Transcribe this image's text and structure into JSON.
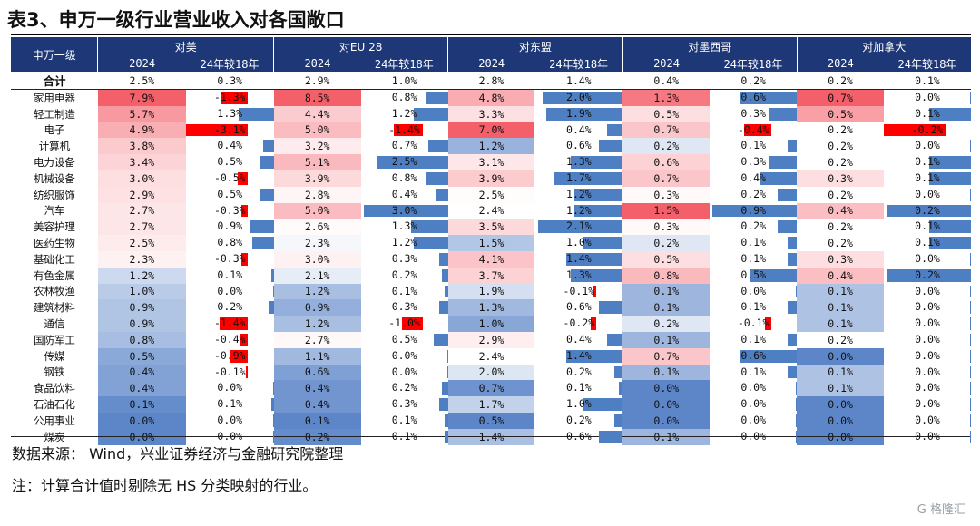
{
  "title": "表3、申万一级行业营业收入对各国敞口",
  "header": {
    "industry_label": "申万一级",
    "groups": [
      "对美",
      "对EU 28",
      "对东盟",
      "对墨西哥",
      "对加拿大"
    ],
    "sub_year": "2024",
    "sub_compare": "24年较18年"
  },
  "total": {
    "name": "合计",
    "values": [
      [
        "2.5%",
        "0.3%"
      ],
      [
        "2.9%",
        "1.0%"
      ],
      [
        "2.8%",
        "1.4%"
      ],
      [
        "0.4%",
        "0.2%"
      ],
      [
        "0.2%",
        "0.1%"
      ]
    ]
  },
  "rows": [
    {
      "name": "家用电器",
      "v": [
        [
          "7.9%",
          "-1.3%"
        ],
        [
          "8.5%",
          "0.8%"
        ],
        [
          "4.8%",
          "2.0%"
        ],
        [
          "1.3%",
          "0.6%"
        ],
        [
          "0.7%",
          "0.0%"
        ]
      ]
    },
    {
      "name": "轻工制造",
      "v": [
        [
          "5.7%",
          "1.3%"
        ],
        [
          "4.4%",
          "1.2%"
        ],
        [
          "3.3%",
          "1.9%"
        ],
        [
          "0.5%",
          "0.3%"
        ],
        [
          "0.5%",
          "0.1%"
        ]
      ]
    },
    {
      "name": "电子",
      "v": [
        [
          "4.9%",
          "-3.1%"
        ],
        [
          "5.0%",
          "-1.4%"
        ],
        [
          "7.0%",
          "0.4%"
        ],
        [
          "0.7%",
          "-0.4%"
        ],
        [
          "0.2%",
          "-0.2%"
        ]
      ]
    },
    {
      "name": "计算机",
      "v": [
        [
          "3.8%",
          "0.4%"
        ],
        [
          "3.2%",
          "0.7%"
        ],
        [
          "1.2%",
          "0.6%"
        ],
        [
          "0.2%",
          "0.1%"
        ],
        [
          "0.2%",
          "0.0%"
        ]
      ]
    },
    {
      "name": "电力设备",
      "v": [
        [
          "3.4%",
          "0.5%"
        ],
        [
          "5.1%",
          "2.5%"
        ],
        [
          "3.1%",
          "1.3%"
        ],
        [
          "0.6%",
          "0.3%"
        ],
        [
          "0.2%",
          "0.1%"
        ]
      ]
    },
    {
      "name": "机械设备",
      "v": [
        [
          "3.0%",
          "-0.5%"
        ],
        [
          "3.9%",
          "0.8%"
        ],
        [
          "3.9%",
          "1.7%"
        ],
        [
          "0.7%",
          "0.4%"
        ],
        [
          "0.3%",
          "0.1%"
        ]
      ]
    },
    {
      "name": "纺织服饰",
      "v": [
        [
          "2.9%",
          "0.5%"
        ],
        [
          "2.8%",
          "0.4%"
        ],
        [
          "2.5%",
          "1.2%"
        ],
        [
          "0.3%",
          "0.2%"
        ],
        [
          "0.2%",
          "0.0%"
        ]
      ]
    },
    {
      "name": "汽车",
      "v": [
        [
          "2.7%",
          "-0.3%"
        ],
        [
          "5.0%",
          "3.0%"
        ],
        [
          "2.4%",
          "1.2%"
        ],
        [
          "1.5%",
          "0.9%"
        ],
        [
          "0.4%",
          "0.2%"
        ]
      ]
    },
    {
      "name": "美容护理",
      "v": [
        [
          "2.7%",
          "0.9%"
        ],
        [
          "2.6%",
          "1.3%"
        ],
        [
          "3.5%",
          "2.1%"
        ],
        [
          "0.3%",
          "0.2%"
        ],
        [
          "0.2%",
          "0.1%"
        ]
      ]
    },
    {
      "name": "医药生物",
      "v": [
        [
          "2.5%",
          "0.8%"
        ],
        [
          "2.3%",
          "1.2%"
        ],
        [
          "1.5%",
          "1.0%"
        ],
        [
          "0.2%",
          "0.1%"
        ],
        [
          "0.2%",
          "0.1%"
        ]
      ]
    },
    {
      "name": "基础化工",
      "v": [
        [
          "2.3%",
          "-0.3%"
        ],
        [
          "3.0%",
          "0.3%"
        ],
        [
          "4.1%",
          "1.4%"
        ],
        [
          "0.5%",
          "0.1%"
        ],
        [
          "0.3%",
          "0.0%"
        ]
      ]
    },
    {
      "name": "有色金属",
      "v": [
        [
          "1.2%",
          "0.1%"
        ],
        [
          "2.1%",
          "0.2%"
        ],
        [
          "3.7%",
          "1.3%"
        ],
        [
          "0.8%",
          "0.5%"
        ],
        [
          "0.4%",
          "0.2%"
        ]
      ]
    },
    {
      "name": "农林牧渔",
      "v": [
        [
          "1.0%",
          "0.0%"
        ],
        [
          "1.2%",
          "0.1%"
        ],
        [
          "1.9%",
          "-0.1%"
        ],
        [
          "0.1%",
          "0.0%"
        ],
        [
          "0.1%",
          "0.0%"
        ]
      ]
    },
    {
      "name": "建筑材料",
      "v": [
        [
          "0.9%",
          "0.2%"
        ],
        [
          "0.9%",
          "0.3%"
        ],
        [
          "1.3%",
          "0.6%"
        ],
        [
          "0.1%",
          "0.1%"
        ],
        [
          "0.1%",
          "0.0%"
        ]
      ]
    },
    {
      "name": "通信",
      "v": [
        [
          "0.9%",
          "-1.4%"
        ],
        [
          "1.2%",
          "-1.0%"
        ],
        [
          "1.0%",
          "-0.2%"
        ],
        [
          "0.2%",
          "-0.1%"
        ],
        [
          "0.1%",
          "0.0%"
        ]
      ]
    },
    {
      "name": "国防军工",
      "v": [
        [
          "0.8%",
          "-0.4%"
        ],
        [
          "2.7%",
          "0.5%"
        ],
        [
          "2.9%",
          "0.4%"
        ],
        [
          "0.1%",
          "0.1%"
        ],
        [
          "0.2%",
          "0.0%"
        ]
      ]
    },
    {
      "name": "传媒",
      "v": [
        [
          "0.5%",
          "-0.9%"
        ],
        [
          "1.1%",
          "0.0%"
        ],
        [
          "2.4%",
          "1.4%"
        ],
        [
          "0.7%",
          "0.6%"
        ],
        [
          "0.0%",
          "0.0%"
        ]
      ]
    },
    {
      "name": "钢铁",
      "v": [
        [
          "0.4%",
          "-0.1%"
        ],
        [
          "0.6%",
          "0.0%"
        ],
        [
          "2.0%",
          "0.2%"
        ],
        [
          "0.1%",
          "0.1%"
        ],
        [
          "0.1%",
          "0.0%"
        ]
      ]
    },
    {
      "name": "食品饮料",
      "v": [
        [
          "0.4%",
          "0.0%"
        ],
        [
          "0.4%",
          "0.2%"
        ],
        [
          "0.7%",
          "0.1%"
        ],
        [
          "0.0%",
          "0.0%"
        ],
        [
          "0.1%",
          "0.0%"
        ]
      ]
    },
    {
      "name": "石油石化",
      "v": [
        [
          "0.1%",
          "0.1%"
        ],
        [
          "0.4%",
          "0.3%"
        ],
        [
          "1.7%",
          "1.0%"
        ],
        [
          "0.0%",
          "0.0%"
        ],
        [
          "0.0%",
          "0.0%"
        ]
      ]
    },
    {
      "name": "公用事业",
      "v": [
        [
          "0.0%",
          "0.0%"
        ],
        [
          "0.1%",
          "0.1%"
        ],
        [
          "0.5%",
          "0.2%"
        ],
        [
          "0.0%",
          "0.0%"
        ],
        [
          "0.0%",
          "0.0%"
        ]
      ]
    },
    {
      "name": "煤炭",
      "v": [
        [
          "0.0%",
          "0.0%"
        ],
        [
          "0.2%",
          "0.1%"
        ],
        [
          "1.4%",
          "0.6%"
        ],
        [
          "0.1%",
          "0.0%"
        ],
        [
          "0.0%",
          "0.0%"
        ]
      ]
    }
  ],
  "colors": {
    "header_bg": "#1e3877",
    "bar_positive": "#4f7fc3",
    "bar_negative": "#ff0000",
    "heat_high": "#f4606a",
    "heat_mid": "#ffffff",
    "heat_low": "#5d86c8"
  },
  "notes": {
    "source": "数据来源：  Wind，兴业证券经济与金融研究院整理",
    "note": "注：计算合计值时剔除无 HS 分类映射的行业。"
  },
  "watermark": "G 格隆汇"
}
